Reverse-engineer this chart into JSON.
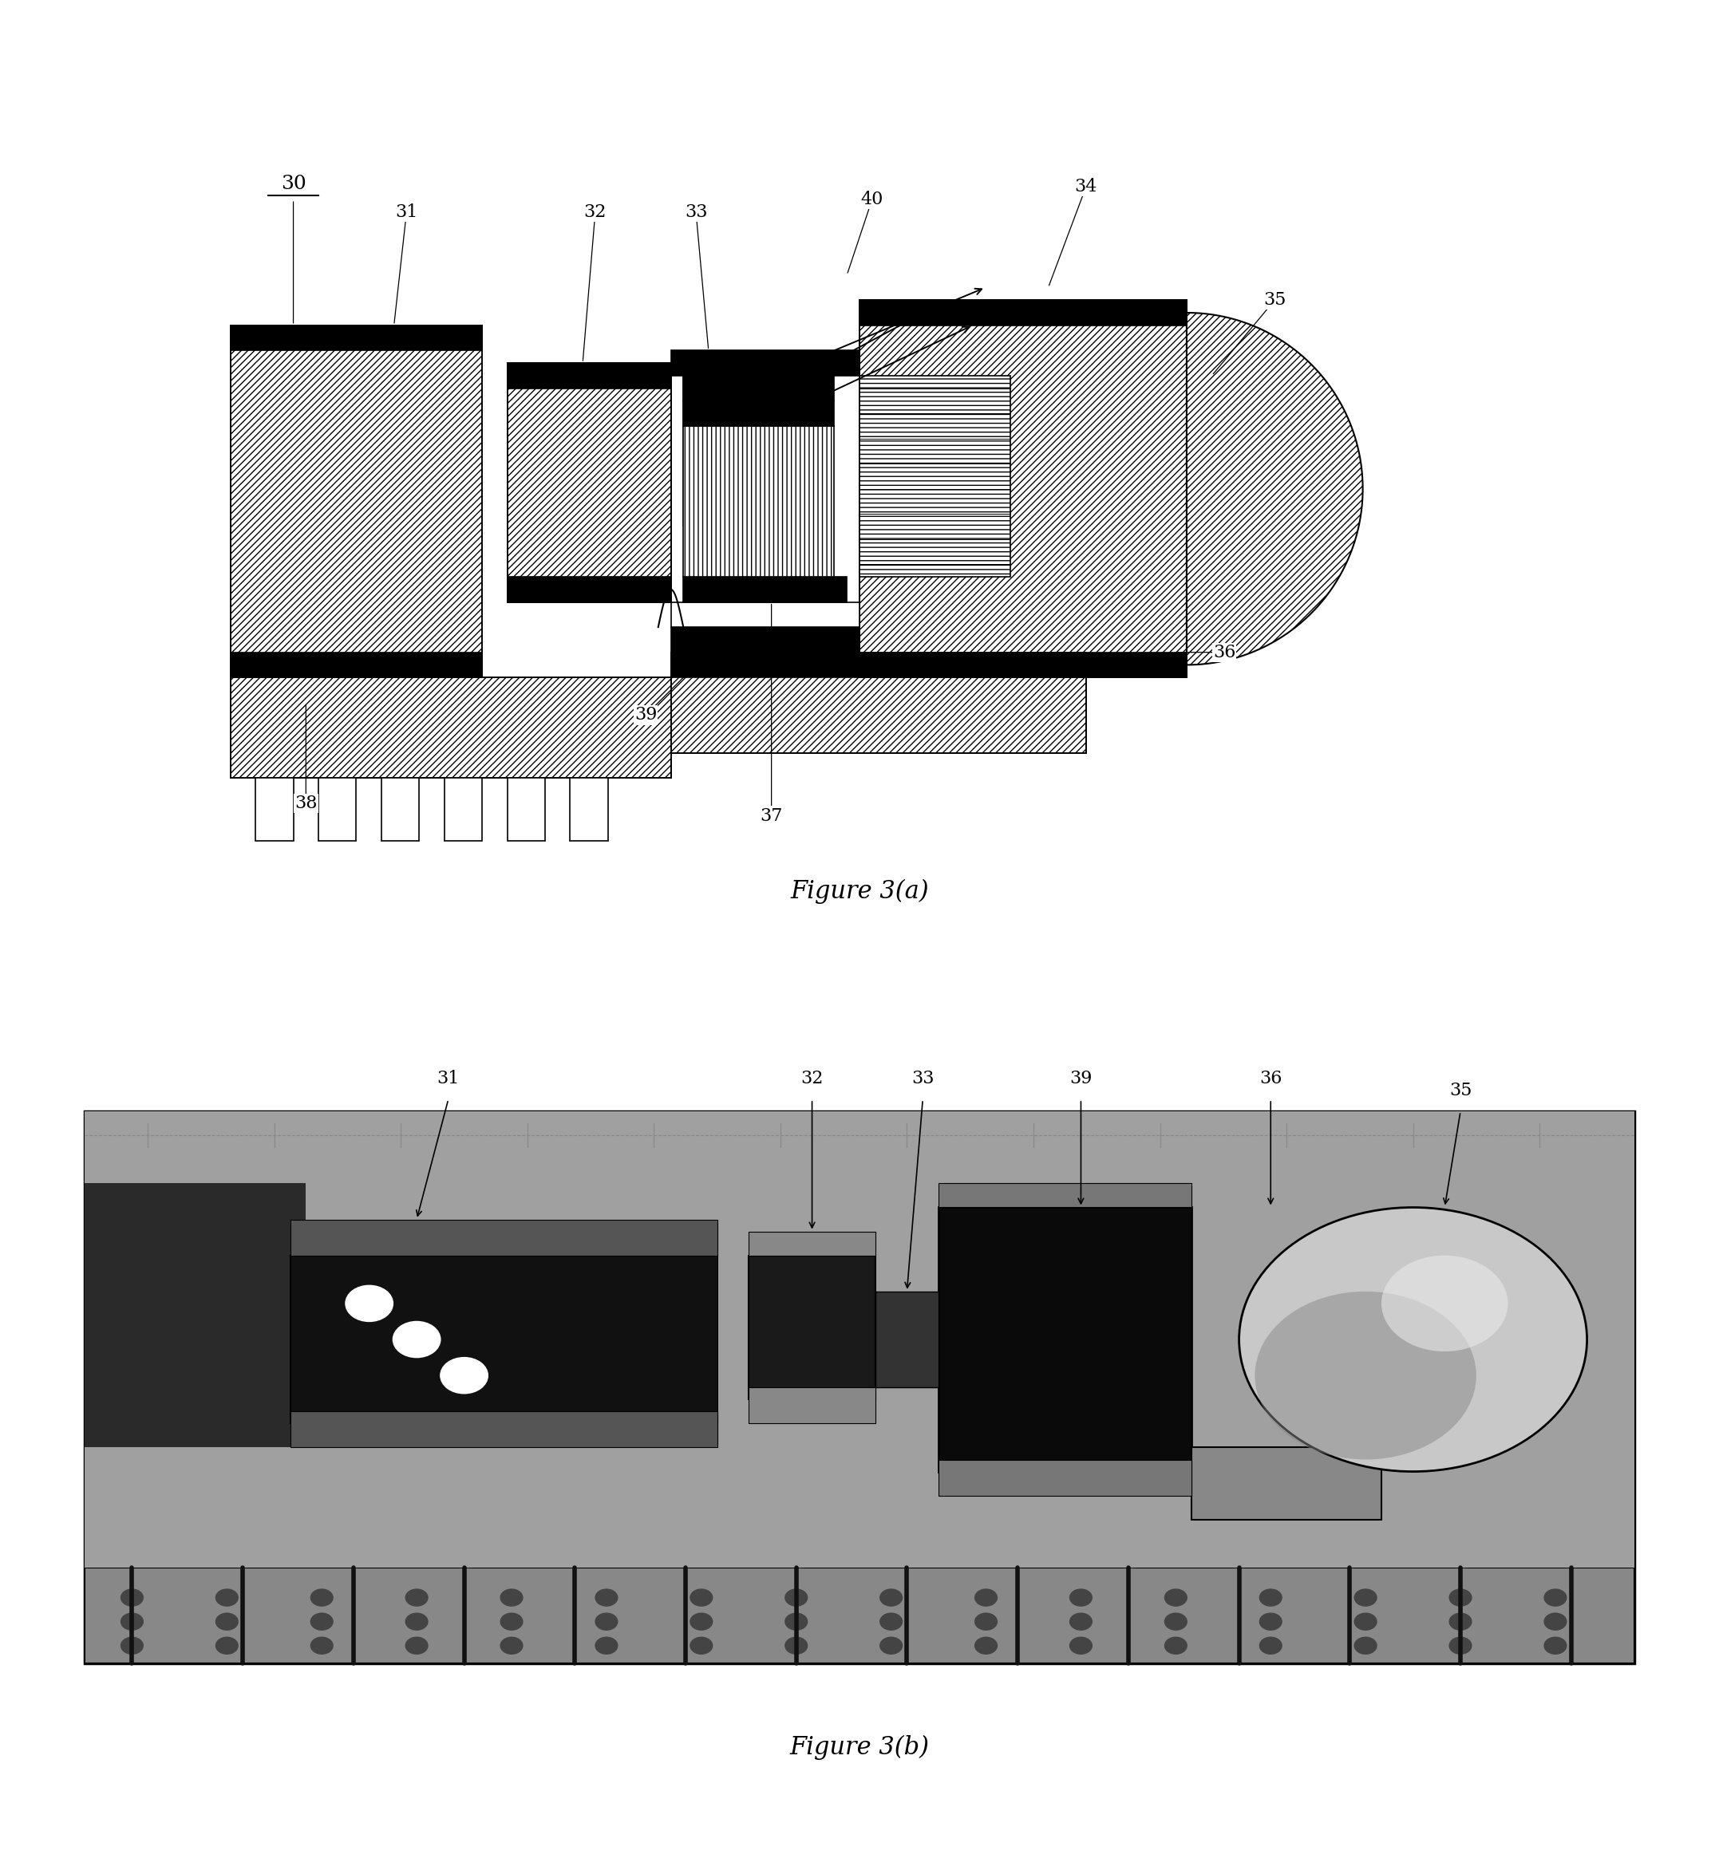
{
  "bg_color": "#ffffff",
  "fig_width": 21.54,
  "fig_height": 23.29,
  "caption_a": "Figure 3(a)",
  "caption_b": "Figure 3(b)",
  "font_size_labels": 16,
  "font_size_caption": 22
}
